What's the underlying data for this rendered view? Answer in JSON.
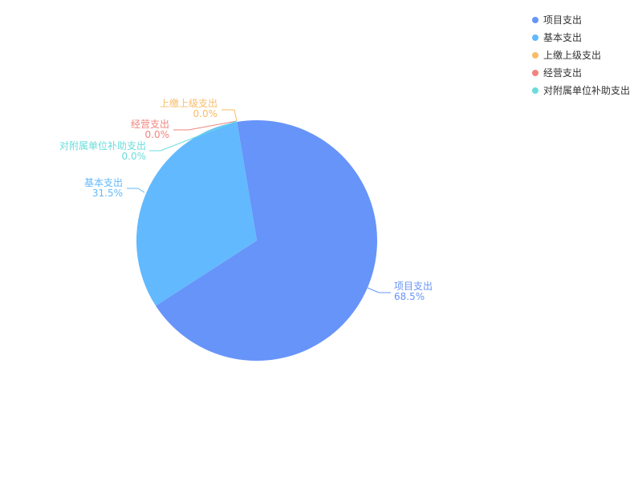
{
  "chart_data": {
    "type": "pie",
    "categories": [
      "项目支出",
      "基本支出",
      "上缴上级支出",
      "经营支出",
      "对附属单位补助支出"
    ],
    "values": [
      68.5,
      31.5,
      0,
      0,
      0
    ],
    "value_labels": [
      "68.5%",
      "31.5%",
      "0.0%",
      "0.0%",
      "0.0%"
    ],
    "colors": [
      "#6794f9",
      "#62b9fe",
      "#f9bc67",
      "#f1857e",
      "#6bdcdb"
    ],
    "legend": "top-right"
  }
}
